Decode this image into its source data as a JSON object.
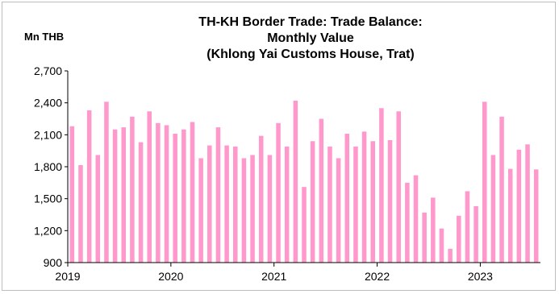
{
  "chart_data": {
    "type": "bar",
    "title_lines": [
      "TH-KH Border Trade: Trade Balance:",
      "Monthly Value",
      "(Khlong Yai Customs House, Trat)"
    ],
    "ylabel": "Mn THB",
    "xlabel": "",
    "ylim": [
      900,
      2700
    ],
    "yticks": [
      "2,700",
      "2,400",
      "2,100",
      "1,800",
      "1,500",
      "1,200",
      "900"
    ],
    "ytick_values": [
      2700,
      2400,
      2100,
      1800,
      1500,
      1200,
      900
    ],
    "xticks": [
      "2019",
      "2020",
      "2021",
      "2022",
      "2023"
    ],
    "bar_color": "#ff99cc",
    "grid": false,
    "series": [
      {
        "values": [
          2180,
          1815,
          2330,
          1910,
          2410,
          2150,
          2170,
          2270,
          2030,
          2320,
          2210,
          2190,
          2110,
          2150,
          2220,
          1880,
          2000,
          2170,
          2000,
          1990,
          1880,
          1910,
          2090,
          1910,
          2210,
          1990,
          2420,
          1610,
          2040,
          2250,
          1990,
          1880,
          2110,
          1990,
          2130,
          2040,
          2350,
          2050,
          2320,
          1650,
          1720,
          1370,
          1510,
          1220,
          1030,
          1340,
          1570,
          1430,
          2410,
          1910,
          2270,
          1780,
          1960,
          2010,
          1775
        ]
      }
    ]
  }
}
